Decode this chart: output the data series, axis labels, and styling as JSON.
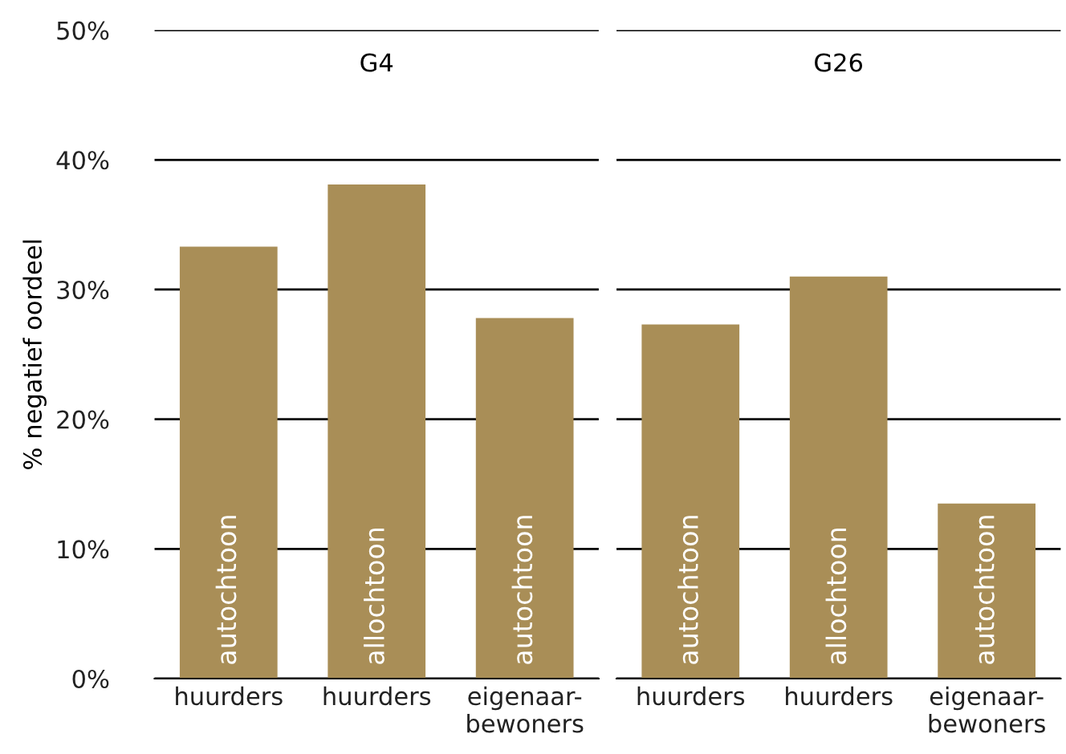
{
  "chart_data": [
    {
      "type": "bar",
      "title": "G4",
      "ylabel": "% negatief oordeel",
      "categories": [
        "huurders",
        "huurders",
        "eigenaar-\nbewoners"
      ],
      "values": [
        33.3,
        38.1,
        27.8
      ],
      "color": "#a98e57",
      "annotations": [
        "autochtoon",
        "allochtoon",
        "autochtoon"
      ],
      "ylim": [
        0,
        50
      ],
      "yticks": [
        {
          "value": 0,
          "label": "0%"
        },
        {
          "value": 10,
          "label": "10%"
        },
        {
          "value": 20,
          "label": "20%"
        },
        {
          "value": 30,
          "label": "30%"
        },
        {
          "value": 40,
          "label": "40%"
        },
        {
          "value": 50,
          "label": "50%"
        }
      ],
      "grid": "y"
    },
    {
      "type": "bar",
      "title": "G26",
      "categories": [
        "huurders",
        "huurders",
        "eigenaar-\nbewoners"
      ],
      "values": [
        27.3,
        31.0,
        13.5
      ],
      "color": "#a98e57",
      "annotations": [
        "autochtoon",
        "allochtoon",
        "autochtoon"
      ],
      "ylim": [
        0,
        50
      ],
      "yticks": [
        0,
        10,
        20,
        30,
        40,
        50
      ],
      "grid": "y",
      "tick_labels": "x"
    }
  ]
}
